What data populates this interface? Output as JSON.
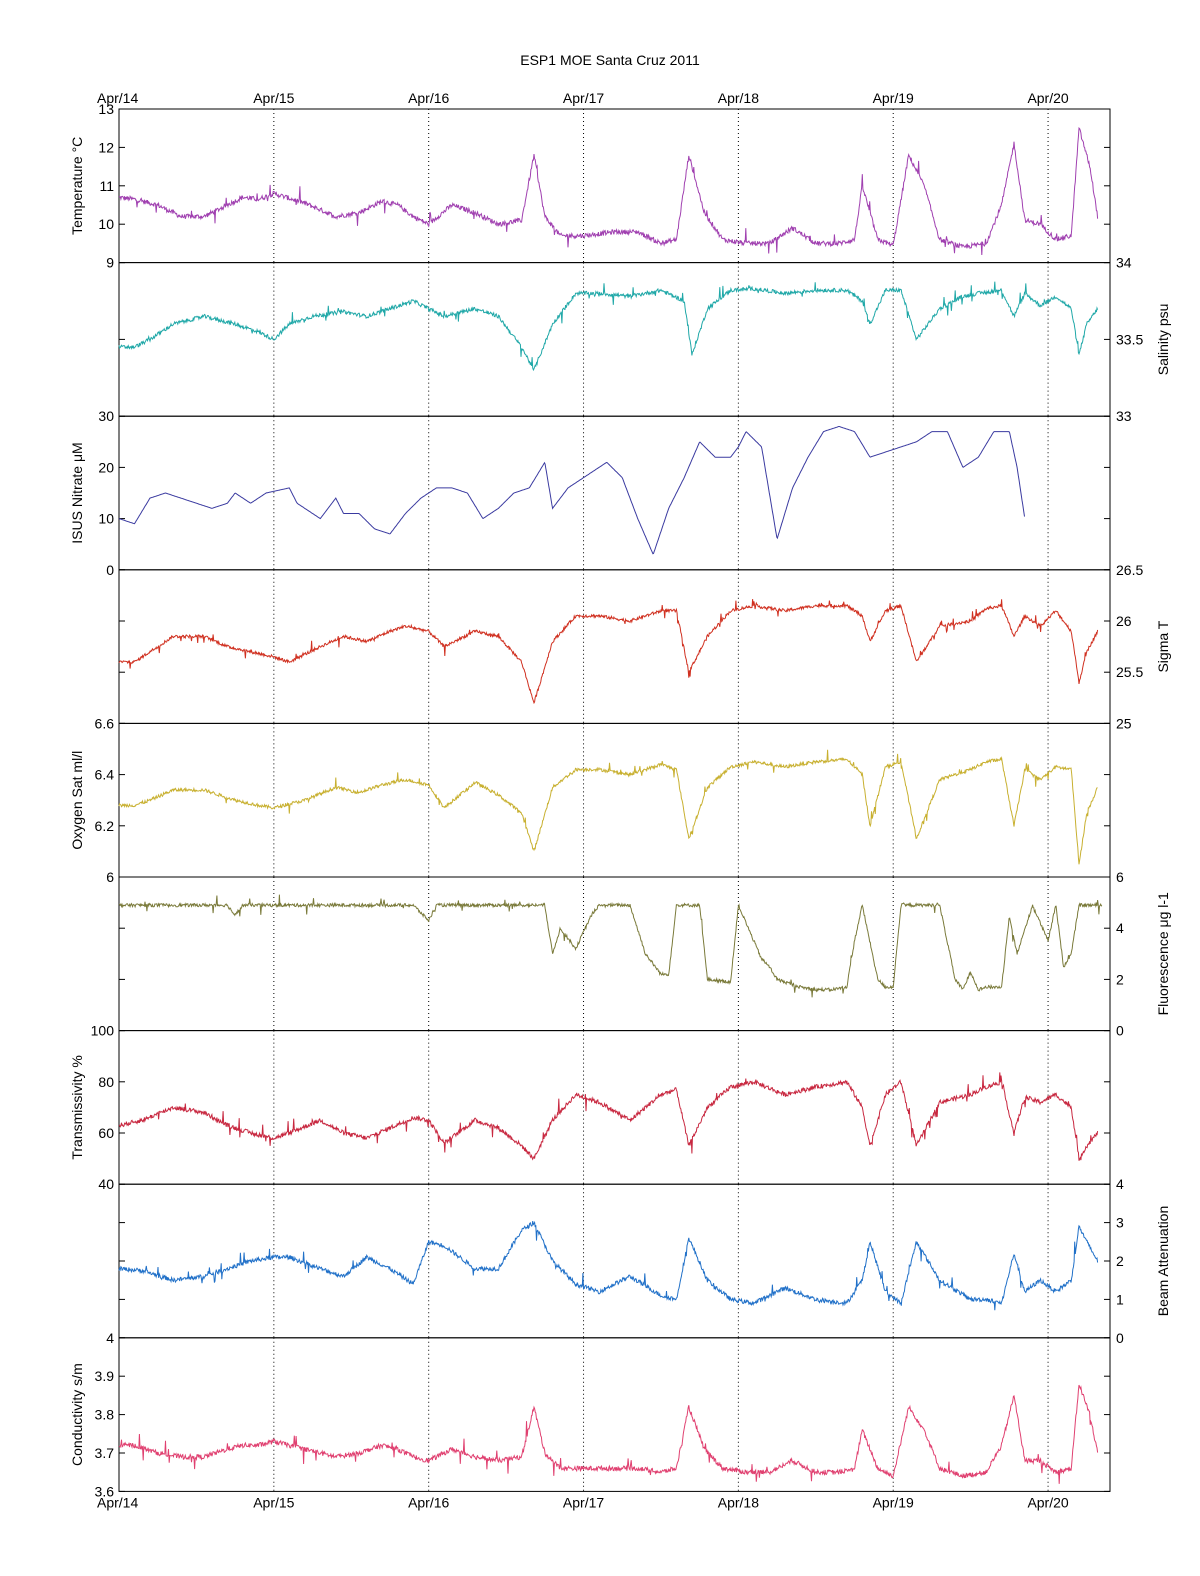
{
  "chart_data": {
    "type": "line",
    "title": "ESP1 MOE Santa Cruz   2011",
    "x_tick_labels": [
      "Apr/14",
      "Apr/15",
      "Apr/16",
      "Apr/17",
      "Apr/18",
      "Apr/19",
      "Apr/20"
    ],
    "x_ticks_days": [
      14,
      15,
      16,
      17,
      18,
      19,
      20
    ],
    "xlim_days": [
      14,
      20.4
    ],
    "grid": "vertical dotted at day ticks",
    "panels": [
      {
        "name": "Temperature",
        "ylabel": "Temperature °C",
        "axis_side": "left",
        "ylim": [
          9,
          13
        ],
        "ytick_labels": [
          "9",
          "10",
          "11",
          "12",
          "13"
        ],
        "yticks": [
          9,
          10,
          11,
          12,
          13
        ],
        "color": "#a040b0",
        "noise": 0.5,
        "x": [
          14.0,
          14.1,
          14.25,
          14.4,
          14.55,
          14.7,
          14.8,
          14.9,
          15.0,
          15.2,
          15.4,
          15.55,
          15.7,
          15.8,
          15.9,
          16.0,
          16.15,
          16.3,
          16.45,
          16.6,
          16.68,
          16.75,
          16.85,
          17.0,
          17.2,
          17.35,
          17.5,
          17.6,
          17.68,
          17.78,
          17.9,
          18.05,
          18.2,
          18.35,
          18.5,
          18.65,
          18.75,
          18.8,
          18.9,
          19.0,
          19.1,
          19.2,
          19.3,
          19.45,
          19.6,
          19.7,
          19.78,
          19.85,
          19.95,
          20.05,
          20.15,
          20.2,
          20.27,
          20.32
        ],
        "y": [
          10.7,
          10.65,
          10.5,
          10.2,
          10.2,
          10.5,
          10.7,
          10.65,
          10.8,
          10.55,
          10.2,
          10.3,
          10.6,
          10.5,
          10.2,
          10.0,
          10.5,
          10.3,
          10.0,
          10.1,
          11.8,
          10.2,
          9.7,
          9.7,
          9.8,
          9.8,
          9.5,
          9.6,
          11.8,
          10.3,
          9.6,
          9.5,
          9.5,
          9.9,
          9.5,
          9.5,
          9.6,
          11.0,
          9.6,
          9.45,
          11.8,
          11.0,
          9.6,
          9.4,
          9.5,
          10.5,
          12.1,
          10.1,
          10.0,
          9.6,
          9.7,
          12.5,
          11.5,
          10.2
        ]
      },
      {
        "name": "Salinity",
        "ylabel": "Salinity psu",
        "axis_side": "right",
        "ylim": [
          33,
          34
        ],
        "ytick_labels": [
          "33",
          "33.5",
          "34"
        ],
        "yticks": [
          33,
          33.5,
          34
        ],
        "color": "#20a8a8",
        "noise": 0.1,
        "x": [
          14.0,
          14.1,
          14.2,
          14.35,
          14.55,
          14.75,
          14.9,
          15.0,
          15.1,
          15.25,
          15.45,
          15.6,
          15.75,
          15.9,
          16.0,
          16.1,
          16.3,
          16.45,
          16.6,
          16.68,
          16.8,
          16.95,
          17.1,
          17.3,
          17.5,
          17.65,
          17.7,
          17.8,
          17.95,
          18.1,
          18.3,
          18.5,
          18.7,
          18.8,
          18.85,
          18.95,
          19.05,
          19.15,
          19.3,
          19.45,
          19.55,
          19.7,
          19.78,
          19.85,
          19.95,
          20.05,
          20.15,
          20.2,
          20.25,
          20.32
        ],
        "y": [
          33.45,
          33.45,
          33.5,
          33.6,
          33.65,
          33.6,
          33.55,
          33.5,
          33.6,
          33.65,
          33.68,
          33.65,
          33.7,
          33.75,
          33.7,
          33.65,
          33.7,
          33.65,
          33.45,
          33.3,
          33.6,
          33.8,
          33.8,
          33.78,
          33.82,
          33.75,
          33.4,
          33.7,
          33.82,
          33.83,
          33.8,
          33.82,
          33.82,
          33.75,
          33.6,
          33.82,
          33.82,
          33.5,
          33.7,
          33.78,
          33.8,
          33.82,
          33.65,
          33.8,
          33.72,
          33.78,
          33.7,
          33.4,
          33.6,
          33.7
        ]
      },
      {
        "name": "ISUS Nitrate",
        "ylabel": "ISUS Nitrate μM",
        "axis_side": "left",
        "ylim": [
          0,
          30
        ],
        "ytick_labels": [
          "0",
          "10",
          "20",
          "30"
        ],
        "yticks": [
          0,
          10,
          20,
          30
        ],
        "color": "#3a3aa0",
        "noise": 0,
        "x": [
          14.0,
          14.1,
          14.2,
          14.3,
          14.5,
          14.6,
          14.7,
          14.75,
          14.85,
          14.95,
          15.1,
          15.15,
          15.3,
          15.4,
          15.45,
          15.55,
          15.65,
          15.75,
          15.85,
          15.95,
          16.05,
          16.15,
          16.25,
          16.35,
          16.45,
          16.55,
          16.65,
          16.75,
          16.8,
          16.9,
          17.0,
          17.1,
          17.15,
          17.25,
          17.35,
          17.45,
          17.55,
          17.65,
          17.75,
          17.85,
          17.95,
          18.0,
          18.05,
          18.15,
          18.25,
          18.35,
          18.45,
          18.55,
          18.65,
          18.75,
          18.85,
          18.95,
          19.05,
          19.15,
          19.25,
          19.35,
          19.45,
          19.55,
          19.65,
          19.75,
          19.8,
          19.85
        ],
        "y": [
          10,
          9,
          14,
          15,
          13,
          12,
          13,
          15,
          13,
          15,
          16,
          13,
          10,
          14,
          11,
          11,
          8,
          7,
          11,
          14,
          16,
          16,
          15,
          10,
          12,
          15,
          16,
          21,
          12,
          16,
          18,
          20,
          21,
          18,
          10,
          3,
          12,
          18,
          25,
          22,
          22,
          24,
          27,
          24,
          6,
          16,
          22,
          27,
          28,
          27,
          22,
          23,
          24,
          25,
          27,
          27,
          20,
          22,
          27,
          27,
          20,
          10
        ]
      },
      {
        "name": "Sigma T",
        "ylabel": "Sigma T",
        "axis_side": "right",
        "ylim": [
          25,
          26.5
        ],
        "ytick_labels": [
          "25",
          "25.5",
          "26",
          "26.5"
        ],
        "yticks": [
          25,
          25.5,
          26,
          26.5
        ],
        "color": "#d03020",
        "noise": 0.12,
        "x": [
          14.0,
          14.1,
          14.2,
          14.35,
          14.55,
          14.7,
          14.85,
          15.0,
          15.1,
          15.3,
          15.45,
          15.6,
          15.75,
          15.85,
          16.0,
          16.1,
          16.3,
          16.45,
          16.6,
          16.68,
          16.8,
          16.95,
          17.1,
          17.3,
          17.5,
          17.6,
          17.68,
          17.8,
          17.95,
          18.1,
          18.3,
          18.5,
          18.7,
          18.8,
          18.85,
          18.95,
          19.05,
          19.15,
          19.3,
          19.5,
          19.6,
          19.7,
          19.78,
          19.85,
          19.95,
          20.05,
          20.15,
          20.2,
          20.25,
          20.32
        ],
        "y": [
          25.6,
          25.6,
          25.7,
          25.85,
          25.85,
          25.75,
          25.7,
          25.65,
          25.6,
          25.75,
          25.85,
          25.8,
          25.9,
          25.95,
          25.9,
          25.75,
          25.9,
          25.85,
          25.6,
          25.2,
          25.8,
          26.05,
          26.05,
          26.0,
          26.1,
          26.1,
          25.5,
          25.85,
          26.1,
          26.15,
          26.1,
          26.15,
          26.15,
          26.05,
          25.8,
          26.1,
          26.15,
          25.6,
          25.95,
          26.0,
          26.12,
          26.15,
          25.85,
          26.05,
          25.95,
          26.1,
          25.9,
          25.4,
          25.7,
          25.9
        ]
      },
      {
        "name": "Oxygen Sat",
        "ylabel": "Oxygen Sat ml/l",
        "axis_side": "left",
        "ylim": [
          6,
          6.6
        ],
        "ytick_labels": [
          "6",
          "6.2",
          "6.4",
          "6.6"
        ],
        "yticks": [
          6,
          6.2,
          6.4,
          6.6
        ],
        "color": "#c8b030",
        "noise": 0.05,
        "x": [
          14.0,
          14.1,
          14.2,
          14.35,
          14.55,
          14.75,
          14.9,
          15.0,
          15.2,
          15.4,
          15.55,
          15.7,
          15.85,
          16.0,
          16.1,
          16.3,
          16.45,
          16.6,
          16.68,
          16.8,
          16.95,
          17.1,
          17.3,
          17.5,
          17.6,
          17.68,
          17.8,
          17.95,
          18.1,
          18.3,
          18.5,
          18.7,
          18.8,
          18.85,
          18.95,
          19.05,
          19.15,
          19.3,
          19.5,
          19.6,
          19.7,
          19.78,
          19.85,
          19.95,
          20.05,
          20.15,
          20.2,
          20.25,
          20.32
        ],
        "y": [
          6.28,
          6.28,
          6.3,
          6.34,
          6.34,
          6.3,
          6.28,
          6.27,
          6.3,
          6.35,
          6.33,
          6.36,
          6.38,
          6.36,
          6.27,
          6.37,
          6.32,
          6.25,
          6.1,
          6.35,
          6.42,
          6.42,
          6.4,
          6.44,
          6.42,
          6.15,
          6.35,
          6.43,
          6.45,
          6.43,
          6.45,
          6.46,
          6.4,
          6.2,
          6.43,
          6.45,
          6.15,
          6.38,
          6.42,
          6.45,
          6.46,
          6.2,
          6.42,
          6.38,
          6.43,
          6.42,
          6.05,
          6.25,
          6.35
        ]
      },
      {
        "name": "Fluorescence",
        "ylabel": "Fluorescence μg l-1",
        "axis_side": "right",
        "ylim": [
          0,
          6
        ],
        "ytick_labels": [
          "0",
          "2",
          "4",
          "6"
        ],
        "yticks": [
          0,
          2,
          4,
          6
        ],
        "color": "#7a7a3a",
        "noise": 0.5,
        "x": [
          14.0,
          14.7,
          14.75,
          14.8,
          15.9,
          16.0,
          16.05,
          16.75,
          16.8,
          16.85,
          16.95,
          17.05,
          17.1,
          17.3,
          17.4,
          17.5,
          17.55,
          17.6,
          17.65,
          17.7,
          17.75,
          17.8,
          17.95,
          18.0,
          18.1,
          18.15,
          18.2,
          18.25,
          18.4,
          18.5,
          18.6,
          18.7,
          18.75,
          18.8,
          18.9,
          18.95,
          19.0,
          19.05,
          19.1,
          19.3,
          19.4,
          19.45,
          19.5,
          19.55,
          19.6,
          19.7,
          19.75,
          19.8,
          19.9,
          20.0,
          20.05,
          20.1,
          20.15,
          20.2,
          20.3,
          20.35
        ],
        "y": [
          4.9,
          4.9,
          4.5,
          4.9,
          4.9,
          4.3,
          4.9,
          4.9,
          3.0,
          4.0,
          3.2,
          4.5,
          4.9,
          4.9,
          3.0,
          2.2,
          2.2,
          4.9,
          4.9,
          4.9,
          4.9,
          2.0,
          1.9,
          4.9,
          3.5,
          2.8,
          2.5,
          2.0,
          1.7,
          1.6,
          1.6,
          1.7,
          3.5,
          4.9,
          2.0,
          1.7,
          1.7,
          4.9,
          4.9,
          4.9,
          2.0,
          1.6,
          2.3,
          1.6,
          1.7,
          1.7,
          4.5,
          3.0,
          4.9,
          3.5,
          4.9,
          2.5,
          3.0,
          4.9,
          4.9,
          4.9
        ]
      },
      {
        "name": "Transmissivity",
        "ylabel": "Transmissivity %",
        "axis_side": "left",
        "ylim": [
          40,
          100
        ],
        "ytick_labels": [
          "40",
          "60",
          "80",
          "100"
        ],
        "yticks": [
          40,
          60,
          80,
          100
        ],
        "color": "#c82840",
        "noise": 7,
        "x": [
          14.0,
          14.15,
          14.35,
          14.55,
          14.7,
          14.85,
          15.0,
          15.1,
          15.3,
          15.45,
          15.6,
          15.75,
          15.9,
          16.0,
          16.1,
          16.3,
          16.45,
          16.6,
          16.68,
          16.8,
          16.95,
          17.1,
          17.3,
          17.5,
          17.6,
          17.68,
          17.8,
          17.95,
          18.1,
          18.3,
          18.5,
          18.7,
          18.8,
          18.85,
          18.95,
          19.05,
          19.15,
          19.3,
          19.5,
          19.6,
          19.7,
          19.78,
          19.85,
          19.95,
          20.05,
          20.15,
          20.2,
          20.25,
          20.32
        ],
        "y": [
          63,
          65,
          70,
          68,
          63,
          60,
          58,
          60,
          65,
          60,
          58,
          62,
          66,
          65,
          56,
          65,
          62,
          55,
          50,
          65,
          75,
          72,
          65,
          75,
          77,
          55,
          70,
          78,
          80,
          75,
          78,
          80,
          70,
          55,
          75,
          80,
          55,
          72,
          75,
          78,
          80,
          60,
          74,
          72,
          75,
          70,
          50,
          55,
          60
        ]
      },
      {
        "name": "Beam Attenuation",
        "ylabel": "Beam Attenuation",
        "axis_side": "right",
        "ylim": [
          0,
          4
        ],
        "ytick_labels": [
          "0",
          "1",
          "2",
          "3",
          "4"
        ],
        "yticks": [
          0,
          1,
          2,
          3,
          4
        ],
        "color": "#2070c8",
        "noise": 0.45,
        "x": [
          14.0,
          14.15,
          14.35,
          14.55,
          14.7,
          14.85,
          15.0,
          15.1,
          15.3,
          15.45,
          15.6,
          15.75,
          15.9,
          16.0,
          16.1,
          16.3,
          16.45,
          16.6,
          16.68,
          16.8,
          16.95,
          17.1,
          17.3,
          17.5,
          17.6,
          17.68,
          17.8,
          17.95,
          18.1,
          18.3,
          18.5,
          18.7,
          18.8,
          18.85,
          18.95,
          19.05,
          19.15,
          19.3,
          19.5,
          19.6,
          19.7,
          19.78,
          19.85,
          19.95,
          20.05,
          20.15,
          20.2,
          20.25,
          20.32
        ],
        "y": [
          1.8,
          1.75,
          1.5,
          1.6,
          1.8,
          2.0,
          2.1,
          2.1,
          1.8,
          1.6,
          2.1,
          1.8,
          1.4,
          2.5,
          2.4,
          1.8,
          1.8,
          2.8,
          3.0,
          2.0,
          1.4,
          1.2,
          1.6,
          1.1,
          1.0,
          2.6,
          1.5,
          1.0,
          0.9,
          1.3,
          1.0,
          0.9,
          1.5,
          2.5,
          1.2,
          0.9,
          2.5,
          1.5,
          1.0,
          1.0,
          0.9,
          2.2,
          1.2,
          1.5,
          1.2,
          1.5,
          2.9,
          2.5,
          2.0
        ]
      },
      {
        "name": "Conductivity",
        "ylabel": "Conductivity s/m",
        "axis_side": "left",
        "ylim": [
          3.6,
          4
        ],
        "ytick_labels": [
          "3.6",
          "3.7",
          "3.8",
          "3.9",
          "4"
        ],
        "yticks": [
          3.6,
          3.7,
          3.8,
          3.9,
          4
        ],
        "color": "#e04070",
        "noise": 0.05,
        "x": [
          14.0,
          14.1,
          14.25,
          14.4,
          14.55,
          14.7,
          14.8,
          14.9,
          15.0,
          15.2,
          15.4,
          15.55,
          15.7,
          15.8,
          15.9,
          16.0,
          16.15,
          16.3,
          16.45,
          16.6,
          16.68,
          16.75,
          16.85,
          17.0,
          17.2,
          17.35,
          17.5,
          17.6,
          17.68,
          17.78,
          17.9,
          18.05,
          18.2,
          18.35,
          18.5,
          18.65,
          18.75,
          18.8,
          18.9,
          19.0,
          19.1,
          19.2,
          19.3,
          19.45,
          19.6,
          19.7,
          19.78,
          19.85,
          19.95,
          20.05,
          20.15,
          20.2,
          20.27,
          20.32
        ],
        "y": [
          3.72,
          3.72,
          3.7,
          3.69,
          3.69,
          3.71,
          3.72,
          3.72,
          3.73,
          3.71,
          3.69,
          3.7,
          3.72,
          3.71,
          3.69,
          3.68,
          3.71,
          3.69,
          3.68,
          3.69,
          3.82,
          3.7,
          3.66,
          3.66,
          3.66,
          3.66,
          3.65,
          3.66,
          3.82,
          3.71,
          3.66,
          3.65,
          3.65,
          3.68,
          3.65,
          3.65,
          3.66,
          3.76,
          3.66,
          3.64,
          3.82,
          3.76,
          3.66,
          3.64,
          3.65,
          3.72,
          3.85,
          3.68,
          3.68,
          3.65,
          3.66,
          3.88,
          3.8,
          3.7
        ]
      }
    ]
  }
}
